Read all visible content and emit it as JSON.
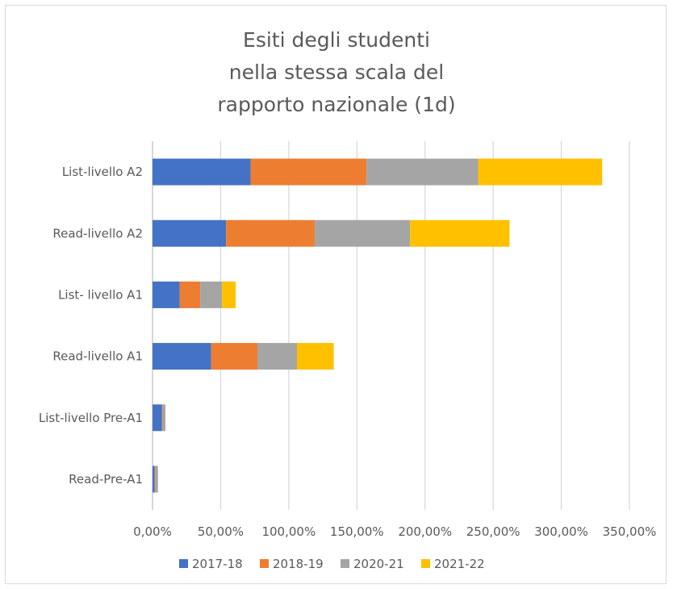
{
  "chart_data": {
    "type": "bar",
    "orientation": "horizontal",
    "stacked": true,
    "title_lines": [
      "Esiti degli studenti",
      "nella stessa scala del",
      "rapporto nazionale (1d)"
    ],
    "categories": [
      "List-livello A2",
      "Read-livello A2",
      "List- livello A1",
      "Read-livello A1",
      "List-livello Pre-A1",
      "Read-Pre-A1"
    ],
    "series": [
      {
        "name": "2017-18",
        "color": "#4472c4",
        "values": [
          72,
          54,
          20,
          43,
          7,
          1.5
        ]
      },
      {
        "name": "2018-19",
        "color": "#ed7d31",
        "values": [
          85,
          65,
          15,
          34,
          0.5,
          0.5
        ]
      },
      {
        "name": "2020-21",
        "color": "#a5a5a5",
        "values": [
          82,
          70,
          16,
          29,
          2,
          2
        ]
      },
      {
        "name": "2021-22",
        "color": "#ffc000",
        "values": [
          91,
          73,
          10,
          27,
          0,
          0
        ]
      }
    ],
    "xlim": [
      0,
      350
    ],
    "xticks": [
      "0,00%",
      "50,00%",
      "100,00%",
      "150,00%",
      "200,00%",
      "250,00%",
      "300,00%",
      "350,00%"
    ],
    "grid": true,
    "legend_position": "bottom"
  }
}
